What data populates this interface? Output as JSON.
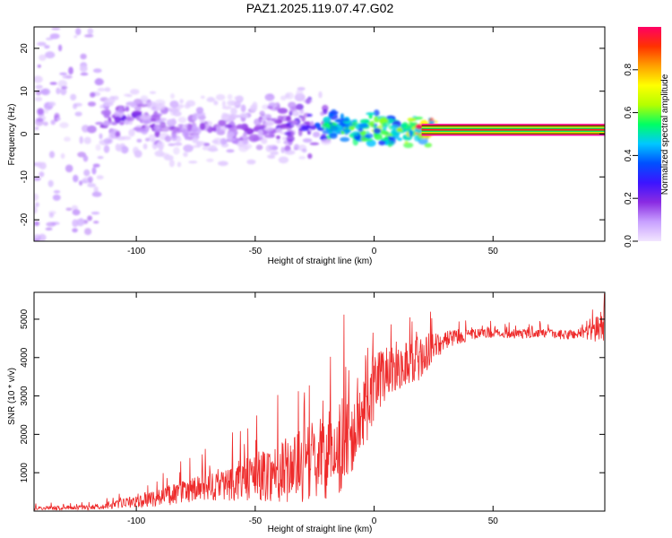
{
  "figure_title": "PAZ1.2025.119.07.47.G02",
  "chart_data": [
    {
      "type": "heatmap",
      "title": "PAZ1.2025.119.07.47.G02",
      "xlabel": "Height of straight line (km)",
      "ylabel": "Frequency (Hz)",
      "xlim": [
        -143,
        97
      ],
      "ylim": [
        -25,
        25
      ],
      "x_ticks": [
        -100,
        -50,
        0,
        50
      ],
      "y_ticks": [
        -20,
        -10,
        0,
        10,
        20
      ],
      "grid": false,
      "colorbar": {
        "label": "Normalized spectral amplitude",
        "range": [
          0,
          1
        ],
        "ticks": [
          0.0,
          0.2,
          0.4,
          0.6,
          0.8
        ],
        "colors": [
          "#f2e6ff",
          "#c8a0ff",
          "#8a2be2",
          "#3c14ff",
          "#0050ff",
          "#00c8ff",
          "#00ff64",
          "#b4ff00",
          "#ffff00",
          "#ffa000",
          "#ff3200",
          "#ff0064"
        ]
      },
      "ridge": {
        "description_points_x": [
          -115,
          -100,
          -80,
          -60,
          -40,
          -25,
          -15,
          -5,
          5,
          15,
          20,
          50,
          97
        ],
        "frequency_hz": [
          3,
          3,
          1,
          1,
          2,
          3,
          2,
          1,
          1,
          1,
          1,
          1,
          1
        ],
        "amplitude": [
          0.18,
          0.2,
          0.15,
          0.18,
          0.2,
          0.3,
          0.4,
          0.55,
          0.6,
          0.65,
          0.95,
          0.95,
          0.95
        ]
      }
    },
    {
      "type": "line",
      "xlabel": "Height of straight line (km)",
      "ylabel": "SNR (10 * v/v)",
      "xlim": [
        -143,
        97
      ],
      "ylim": [
        0,
        5700
      ],
      "x_ticks": [
        -100,
        -50,
        0,
        50
      ],
      "y_ticks": [
        1000,
        2000,
        3000,
        4000,
        5000
      ],
      "grid": false,
      "color": "#ee2b2b",
      "envelope_x": [
        -143,
        -120,
        -110,
        -100,
        -90,
        -80,
        -70,
        -60,
        -50,
        -40,
        -30,
        -20,
        -15,
        -10,
        -5,
        0,
        5,
        10,
        15,
        20,
        25,
        30,
        40,
        50,
        60,
        70,
        80,
        90,
        95,
        97
      ],
      "envelope_base": [
        60,
        80,
        120,
        200,
        300,
        400,
        500,
        600,
        700,
        800,
        900,
        1100,
        1300,
        1600,
        2200,
        3000,
        3400,
        3600,
        3700,
        3800,
        4100,
        4400,
        4550,
        4600,
        4580,
        4600,
        4550,
        4600,
        4650,
        4800
      ],
      "envelope_spread": [
        60,
        80,
        120,
        200,
        300,
        400,
        500,
        600,
        800,
        1000,
        1200,
        1400,
        1500,
        1600,
        1400,
        1100,
        900,
        800,
        800,
        700,
        500,
        300,
        200,
        150,
        150,
        150,
        150,
        250,
        500,
        700
      ]
    }
  ]
}
